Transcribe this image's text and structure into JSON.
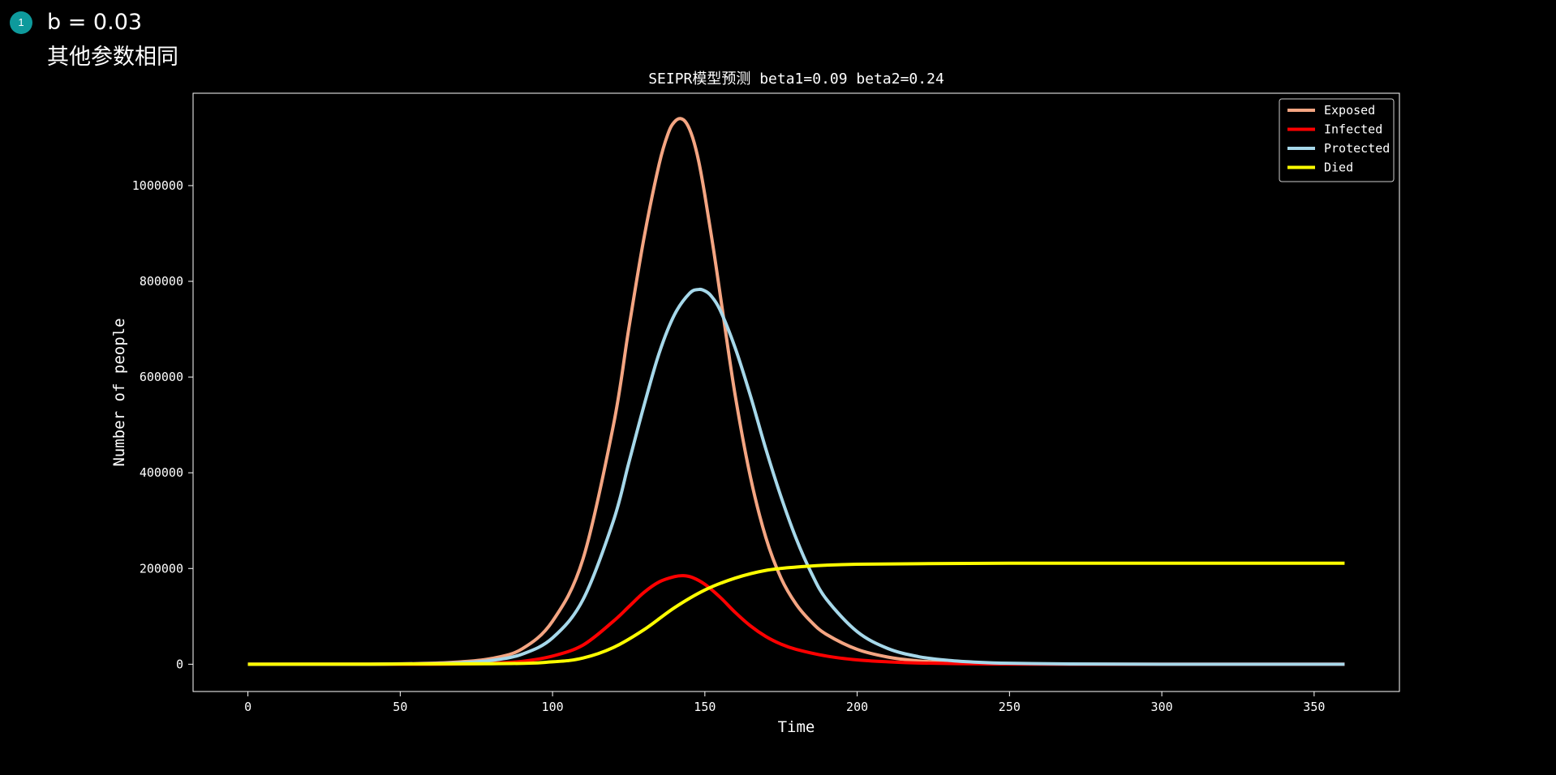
{
  "note": {
    "badge": "1",
    "line1": "b = 0.03",
    "line2": "其他参数相同",
    "badge_color": "#0e9a9c"
  },
  "chart_data": {
    "type": "line",
    "title": "SEIPR模型预测 beta1=0.09 beta2=0.24",
    "xlabel": "Time",
    "ylabel": "Number of people",
    "xlim": [
      -18,
      378
    ],
    "ylim": [
      -57000,
      1193000
    ],
    "xticks": [
      0,
      50,
      100,
      150,
      200,
      250,
      300,
      350
    ],
    "yticks": [
      0,
      200000,
      400000,
      600000,
      800000,
      1000000
    ],
    "grid": false,
    "legend_position": "top-right",
    "series": [
      {
        "name": "Exposed",
        "color": "#f4a582",
        "x": [
          0,
          40,
          60,
          70,
          80,
          90,
          100,
          110,
          120,
          125,
          130,
          135,
          138,
          140,
          142,
          144,
          146,
          148,
          150,
          153,
          156,
          160,
          165,
          170,
          175,
          180,
          185,
          190,
          200,
          210,
          220,
          230,
          240,
          250,
          270,
          300,
          330,
          360
        ],
        "y": [
          0,
          0,
          2000,
          5000,
          12000,
          32000,
          90000,
          220000,
          500000,
          700000,
          890000,
          1045000,
          1110000,
          1133000,
          1140000,
          1130000,
          1100000,
          1050000,
          980000,
          860000,
          730000,
          560000,
          390000,
          265000,
          180000,
          125000,
          88000,
          62000,
          31000,
          15000,
          7000,
          3500,
          1700,
          800,
          200,
          0,
          0,
          0
        ]
      },
      {
        "name": "Infected",
        "color": "#ff0000",
        "x": [
          0,
          60,
          80,
          90,
          100,
          110,
          120,
          125,
          130,
          135,
          140,
          143,
          146,
          150,
          155,
          160,
          165,
          170,
          175,
          180,
          190,
          200,
          210,
          220,
          240,
          260,
          300,
          360
        ],
        "y": [
          0,
          0,
          2000,
          6000,
          17000,
          40000,
          90000,
          120000,
          150000,
          172000,
          183000,
          185000,
          181000,
          167000,
          140000,
          108000,
          80000,
          58000,
          42000,
          31000,
          17000,
          9000,
          5000,
          2500,
          700,
          200,
          0,
          0
        ]
      },
      {
        "name": "Protected",
        "color": "#a6d8ea",
        "x": [
          0,
          40,
          60,
          70,
          80,
          90,
          100,
          110,
          120,
          125,
          130,
          135,
          140,
          145,
          148,
          150,
          152,
          155,
          160,
          165,
          170,
          175,
          180,
          185,
          190,
          200,
          210,
          220,
          230,
          240,
          250,
          270,
          300,
          330,
          360
        ],
        "y": [
          0,
          0,
          1000,
          3000,
          8000,
          21000,
          55000,
          135000,
          300000,
          420000,
          540000,
          650000,
          730000,
          775000,
          783000,
          780000,
          770000,
          740000,
          660000,
          560000,
          450000,
          350000,
          262000,
          190000,
          135000,
          68000,
          33000,
          16000,
          8000,
          4000,
          2000,
          500,
          0,
          0,
          0
        ]
      },
      {
        "name": "Died",
        "color": "#ffff00",
        "x": [
          0,
          80,
          100,
          110,
          120,
          130,
          140,
          150,
          160,
          170,
          180,
          190,
          200,
          220,
          250,
          300,
          360
        ],
        "y": [
          0,
          1000,
          5000,
          13000,
          35000,
          72000,
          118000,
          155000,
          180000,
          196000,
          203000,
          207000,
          209000,
          210000,
          211000,
          211000,
          211000
        ]
      }
    ]
  }
}
